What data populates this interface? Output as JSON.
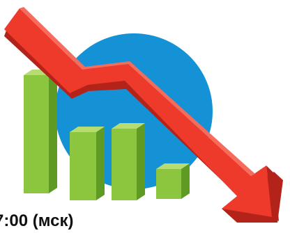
{
  "caption": "7:00 (мск)",
  "colors": {
    "circle": "#1592d6",
    "bar_front": "#8cc63f",
    "bar_side": "#5f9a22",
    "bar_top": "#b6dc72",
    "arrow_main": "#ee3a2b",
    "arrow_dark": "#b3231a",
    "arrow_light": "#f56b5c"
  },
  "icons": [
    "blue-circle-backdrop",
    "green-3d-bar-icon",
    "red-falling-arrow-icon"
  ]
}
